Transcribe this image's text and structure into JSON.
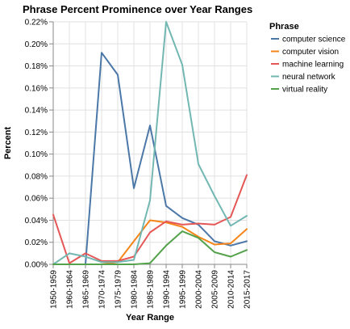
{
  "chart_data": {
    "type": "line",
    "title": "Phrase Percent Prominence over Year Ranges",
    "xlabel": "Year Range",
    "ylabel": "Percent",
    "categories": [
      "1950-1959",
      "1960-1964",
      "1965-1969",
      "1970-1974",
      "1975-1979",
      "1980-1984",
      "1985-1989",
      "1990-1994",
      "1995-1999",
      "2000-2004",
      "2005-2009",
      "2010-2014",
      "2015-2017"
    ],
    "ylim": [
      0,
      0.22
    ],
    "y_ticks": [
      "0.00%",
      "0.02%",
      "0.04%",
      "0.06%",
      "0.08%",
      "0.10%",
      "0.12%",
      "0.14%",
      "0.16%",
      "0.18%",
      "0.20%",
      "0.22%"
    ],
    "grid": true,
    "legend": {
      "title": "Phrase",
      "position": "right"
    },
    "series": [
      {
        "name": "computer science",
        "color": "#4c78a8",
        "values": [
          0,
          0,
          0,
          0.192,
          0.172,
          0.069,
          0.126,
          0.053,
          0.042,
          0.036,
          0.021,
          0.017,
          0.021
        ]
      },
      {
        "name": "computer vision",
        "color": "#f58518",
        "values": [
          0,
          0,
          0,
          0,
          0.002,
          0.021,
          0.04,
          0.038,
          0.034,
          0.025,
          0.018,
          0.019,
          0.032
        ]
      },
      {
        "name": "machine learning",
        "color": "#e45756",
        "values": [
          0.045,
          0.001,
          0.01,
          0.003,
          0.003,
          0.007,
          0.029,
          0.039,
          0.036,
          0.037,
          0.036,
          0.043,
          0.081
        ]
      },
      {
        "name": "neural network",
        "color": "#72b7b2",
        "values": [
          0,
          0.01,
          0.007,
          0.002,
          0.002,
          0.004,
          0.058,
          0.22,
          0.181,
          0.091,
          0.062,
          0.035,
          0.044
        ]
      },
      {
        "name": "virtual reality",
        "color": "#54a24b",
        "values": [
          0,
          0,
          0,
          0,
          0,
          0,
          0.001,
          0.017,
          0.03,
          0.024,
          0.011,
          0.007,
          0.013
        ]
      }
    ]
  }
}
